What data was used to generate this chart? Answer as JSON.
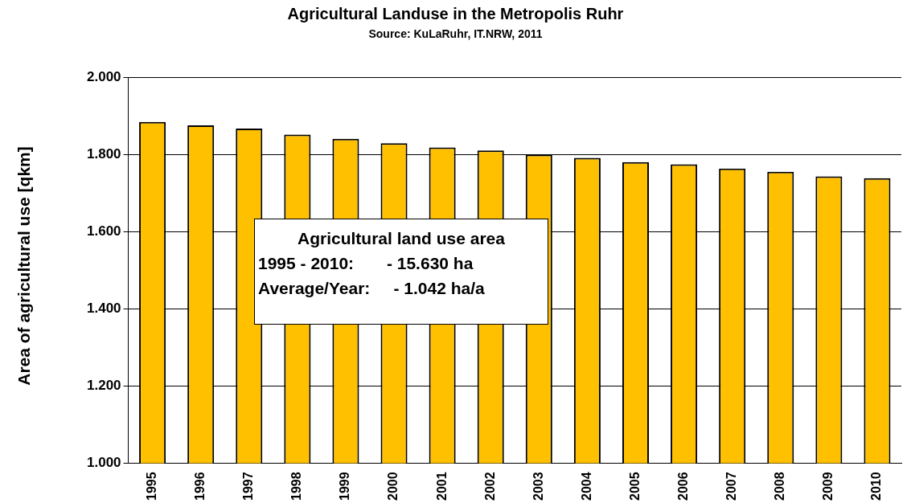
{
  "chart_data": {
    "type": "bar",
    "title": "Agricultural Landuse in the Metropolis Ruhr",
    "subtitle": "Source: KuLaRuhr, IT.NRW, 2011",
    "ylabel": "Area of agricultural use [qkm]",
    "categories": [
      "1995",
      "1996",
      "1997",
      "1998",
      "1999",
      "2000",
      "2001",
      "2002",
      "2003",
      "2004",
      "2005",
      "2006",
      "2007",
      "2008",
      "2009",
      "2010"
    ],
    "values": [
      1884,
      1875,
      1867,
      1851,
      1840,
      1829,
      1818,
      1810,
      1799,
      1791,
      1780,
      1774,
      1763,
      1755,
      1743,
      1738
    ],
    "color": "#ffc000",
    "ylim": [
      1000,
      2000
    ],
    "yticks": [
      {
        "value": 1000,
        "label": "1.000"
      },
      {
        "value": 1200,
        "label": "1.200"
      },
      {
        "value": 1400,
        "label": "1.400"
      },
      {
        "value": 1600,
        "label": "1.600"
      },
      {
        "value": 1800,
        "label": "1.800"
      },
      {
        "value": 2000,
        "label": "2.000"
      }
    ],
    "grid": "y",
    "legend": false,
    "annotations": [
      "Agricultural land use area",
      "1995 - 2010:       - 15.630 ha",
      "Average/Year:     - 1.042 ha/a"
    ]
  }
}
